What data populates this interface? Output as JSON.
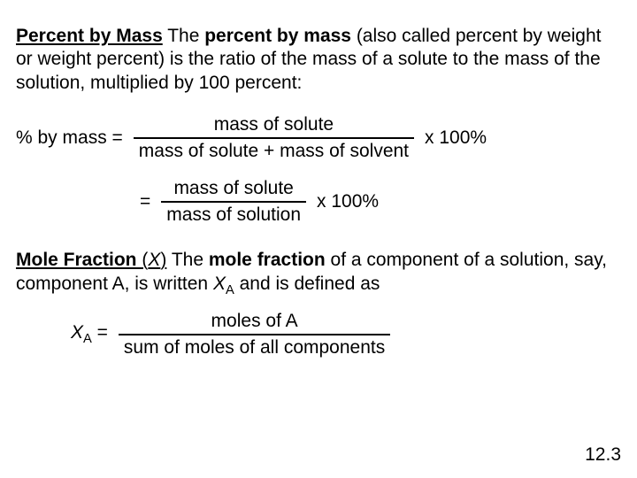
{
  "section1": {
    "title": "Percent by Mass",
    "intro_a": " The ",
    "intro_bold": "percent by mass",
    "intro_b": " (also called percent by weight or weight percent) is the ratio of the mass of a solute to the mass of the solution, multiplied by 100 percent:"
  },
  "formula1": {
    "lhs": "% by mass =",
    "num": "mass of solute",
    "den": "mass of solute + mass of solvent",
    "mult": "x 100%"
  },
  "formula2": {
    "eq": "=",
    "num": "mass of solute",
    "den": "mass of solution",
    "mult": "x 100%"
  },
  "section2": {
    "title": "Mole Fraction",
    "sym_pre": " (",
    "sym": "X",
    "sym_post": ")",
    "intro_a": " The ",
    "intro_bold": "mole fraction",
    "intro_b": " of a component of a solution, say, component A, is written ",
    "xa_x": "X",
    "xa_a": "A",
    "intro_c": " and is defined as"
  },
  "formula3": {
    "lhs_x": "X",
    "lhs_a": "A",
    "lhs_eq": " = ",
    "num": "moles of A",
    "den": "sum of moles of all components"
  },
  "page": "12.3"
}
